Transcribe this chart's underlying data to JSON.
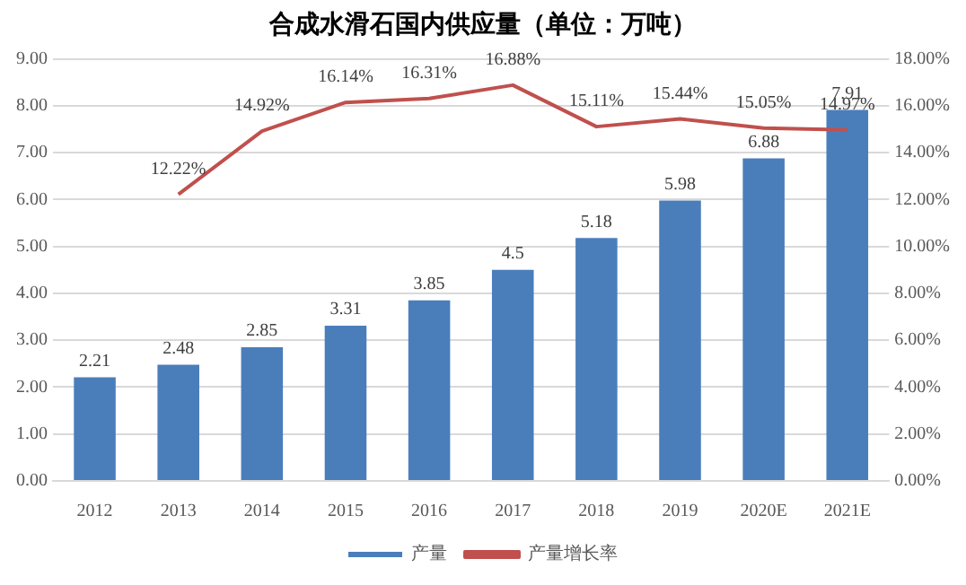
{
  "chart_data": {
    "type": "bar",
    "title": "合成水滑石国内供应量（单位：万吨）",
    "categories": [
      "2012",
      "2013",
      "2014",
      "2015",
      "2016",
      "2017",
      "2018",
      "2019",
      "2020E",
      "2021E"
    ],
    "series": [
      {
        "name": "产量",
        "color": "#4a7ebb",
        "values": [
          2.21,
          2.48,
          2.85,
          3.31,
          3.85,
          4.5,
          5.18,
          5.98,
          6.88,
          7.91
        ],
        "value_labels": [
          "2.21",
          "2.48",
          "2.85",
          "3.31",
          "3.85",
          "4.5",
          "5.18",
          "5.98",
          "6.88",
          "7.91"
        ]
      },
      {
        "name": "产量增长率",
        "type": "line",
        "axis": "y2",
        "color": "#c0504d",
        "values": [
          null,
          12.22,
          14.92,
          16.14,
          16.31,
          16.88,
          15.11,
          15.44,
          15.05,
          14.97
        ],
        "value_labels": [
          null,
          "12.22%",
          "14.92%",
          "16.14%",
          "16.31%",
          "16.88%",
          "15.11%",
          "15.44%",
          "15.05%",
          "14.97%"
        ]
      }
    ],
    "ylim": [
      0,
      9
    ],
    "yticks": [
      {
        "value": 0,
        "label": "0.00"
      },
      {
        "value": 1,
        "label": "1.00"
      },
      {
        "value": 2,
        "label": "2.00"
      },
      {
        "value": 3,
        "label": "3.00"
      },
      {
        "value": 4,
        "label": "4.00"
      },
      {
        "value": 5,
        "label": "5.00"
      },
      {
        "value": 6,
        "label": "6.00"
      },
      {
        "value": 7,
        "label": "7.00"
      },
      {
        "value": 8,
        "label": "8.00"
      },
      {
        "value": 9,
        "label": "9.00"
      }
    ],
    "y2lim": [
      0,
      18
    ],
    "y2ticks": [
      {
        "value": 0,
        "label": "0.00%"
      },
      {
        "value": 2,
        "label": "2.00%"
      },
      {
        "value": 4,
        "label": "4.00%"
      },
      {
        "value": 6,
        "label": "6.00%"
      },
      {
        "value": 8,
        "label": "8.00%"
      },
      {
        "value": 10,
        "label": "10.00%"
      },
      {
        "value": 12,
        "label": "12.00%"
      },
      {
        "value": 14,
        "label": "14.00%"
      },
      {
        "value": 16,
        "label": "16.00%"
      },
      {
        "value": 18,
        "label": "18.00%"
      }
    ],
    "grid": "y",
    "legend": "bottom",
    "marker": "none",
    "line_style": "solid"
  }
}
